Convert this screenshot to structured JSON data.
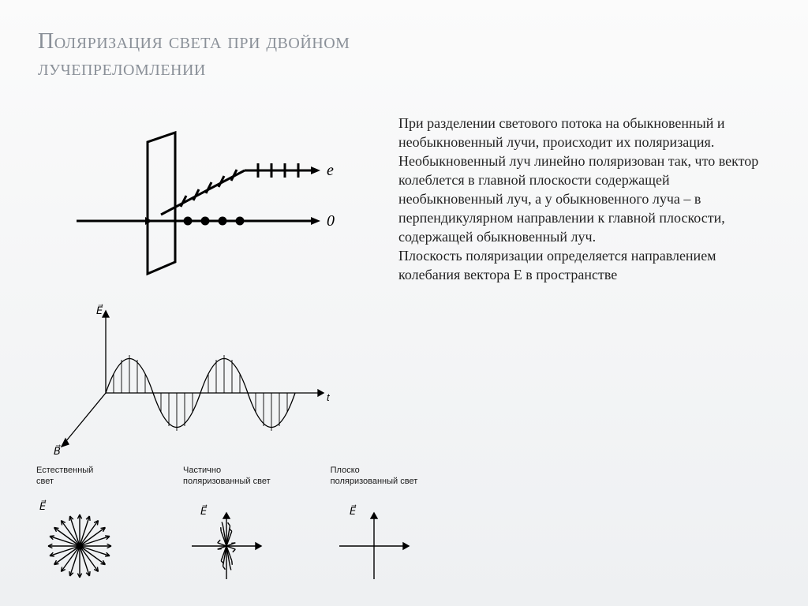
{
  "title": {
    "line1": "Поляризация света при двойном",
    "line2": "лучепреломлении",
    "fontsize": 28,
    "color": "#8a9098"
  },
  "body_text": {
    "content": "При разделении светового потока на обыкновенный и необыкновенный лучи, происходит их поляризация. Необыкновенный луч линейно поляризован так, что вектор колеблется в главной плоскости содержащей необыкновенный луч, а у обыкновенного луча – в перпендикулярном направлении к главной плоскости, содержащей обыкновенный луч.\nПлоскость поляризации определяется направлением колебания вектора Е в пространстве",
    "fontsize": 18,
    "color": "#222222"
  },
  "diagram_birefringence": {
    "type": "diagram",
    "e_label": "e",
    "o_label": "0",
    "stroke": "#000000",
    "stroke_width": 3,
    "dot_radius": 5,
    "tick_len": 14
  },
  "diagram_wave": {
    "type": "diagram",
    "E_label": "E⃗",
    "B_label": "B⃗",
    "t_label": "t",
    "stroke": "#000000"
  },
  "bottom_items": [
    {
      "label_l1": "Естественный",
      "label_l2": "свет",
      "kind": "natural",
      "vec_label": "E⃗"
    },
    {
      "label_l1": "Частично",
      "label_l2": "поляризованный свет",
      "kind": "partial",
      "vec_label": "E⃗"
    },
    {
      "label_l1": "Плоско",
      "label_l2": "поляризованный свет",
      "kind": "plane",
      "vec_label": "E⃗"
    }
  ],
  "style": {
    "label_fontsize": 11,
    "label_color": "#1a1a1a",
    "svg_stroke": "#000000",
    "text_font": "Georgia"
  }
}
